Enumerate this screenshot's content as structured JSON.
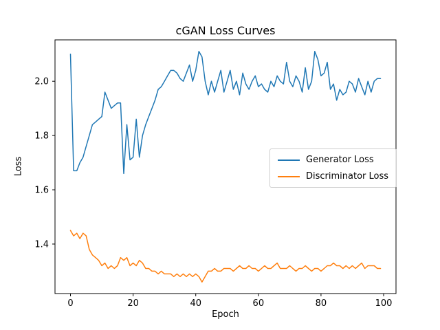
{
  "figure": {
    "background": "#ffffff"
  },
  "chart_data": {
    "type": "line",
    "title": "cGAN Loss Curves",
    "xlabel": "Epoch",
    "ylabel": "Loss",
    "grid": false,
    "legend_position": "center right",
    "xlim": [
      -4.95,
      103.95
    ],
    "ylim": [
      1.2175,
      2.1525
    ],
    "xticks": [
      0,
      20,
      40,
      60,
      80,
      100
    ],
    "xtick_labels": [
      "0",
      "20",
      "40",
      "60",
      "80",
      "100"
    ],
    "yticks": [
      1.4,
      1.6,
      1.8,
      2.0
    ],
    "ytick_labels": [
      "1.4",
      "1.6",
      "1.8",
      "2.0"
    ],
    "x": [
      0,
      1,
      2,
      3,
      4,
      5,
      6,
      7,
      8,
      9,
      10,
      11,
      12,
      13,
      14,
      15,
      16,
      17,
      18,
      19,
      20,
      21,
      22,
      23,
      24,
      25,
      26,
      27,
      28,
      29,
      30,
      31,
      32,
      33,
      34,
      35,
      36,
      37,
      38,
      39,
      40,
      41,
      42,
      43,
      44,
      45,
      46,
      47,
      48,
      49,
      50,
      51,
      52,
      53,
      54,
      55,
      56,
      57,
      58,
      59,
      60,
      61,
      62,
      63,
      64,
      65,
      66,
      67,
      68,
      69,
      70,
      71,
      72,
      73,
      74,
      75,
      76,
      77,
      78,
      79,
      80,
      81,
      82,
      83,
      84,
      85,
      86,
      87,
      88,
      89,
      90,
      91,
      92,
      93,
      94,
      95,
      96,
      97,
      98,
      99
    ],
    "series": [
      {
        "name": "Generator Loss",
        "color": "#1f77b4",
        "values": [
          2.1,
          1.67,
          1.67,
          1.7,
          1.72,
          1.76,
          1.8,
          1.84,
          1.85,
          1.86,
          1.87,
          1.96,
          1.93,
          1.9,
          1.91,
          1.92,
          1.92,
          1.66,
          1.84,
          1.71,
          1.72,
          1.86,
          1.72,
          1.8,
          1.84,
          1.87,
          1.9,
          1.93,
          1.97,
          1.98,
          2.0,
          2.02,
          2.04,
          2.04,
          2.03,
          2.01,
          2.0,
          2.03,
          2.06,
          2.0,
          2.04,
          2.11,
          2.09,
          2.0,
          1.95,
          2.0,
          1.96,
          2.0,
          2.04,
          1.96,
          2.0,
          2.04,
          1.97,
          2.0,
          1.95,
          2.03,
          1.99,
          1.97,
          2.0,
          2.02,
          1.98,
          1.99,
          1.97,
          1.96,
          2.0,
          1.98,
          2.02,
          2.0,
          1.99,
          2.07,
          2.0,
          1.98,
          2.02,
          2.0,
          1.96,
          2.05,
          1.97,
          2.0,
          2.11,
          2.08,
          2.02,
          2.03,
          2.07,
          1.97,
          1.99,
          1.93,
          1.97,
          1.95,
          1.96,
          2.0,
          1.99,
          1.96,
          2.01,
          1.98,
          1.95,
          2.0,
          1.96,
          2.0,
          2.01,
          2.01
        ]
      },
      {
        "name": "Discriminator Loss",
        "color": "#ff7f0e",
        "values": [
          1.45,
          1.43,
          1.44,
          1.42,
          1.44,
          1.43,
          1.38,
          1.36,
          1.35,
          1.34,
          1.32,
          1.33,
          1.31,
          1.32,
          1.31,
          1.32,
          1.35,
          1.34,
          1.35,
          1.32,
          1.33,
          1.32,
          1.34,
          1.33,
          1.31,
          1.31,
          1.3,
          1.3,
          1.29,
          1.3,
          1.29,
          1.29,
          1.29,
          1.28,
          1.29,
          1.28,
          1.29,
          1.28,
          1.29,
          1.28,
          1.29,
          1.28,
          1.26,
          1.28,
          1.3,
          1.3,
          1.31,
          1.3,
          1.3,
          1.31,
          1.31,
          1.31,
          1.3,
          1.31,
          1.32,
          1.31,
          1.31,
          1.32,
          1.31,
          1.31,
          1.3,
          1.31,
          1.32,
          1.31,
          1.31,
          1.32,
          1.33,
          1.31,
          1.31,
          1.31,
          1.32,
          1.31,
          1.3,
          1.31,
          1.31,
          1.32,
          1.31,
          1.3,
          1.31,
          1.31,
          1.3,
          1.31,
          1.32,
          1.32,
          1.33,
          1.32,
          1.32,
          1.31,
          1.32,
          1.31,
          1.32,
          1.31,
          1.32,
          1.33,
          1.31,
          1.32,
          1.32,
          1.32,
          1.31,
          1.31
        ]
      }
    ]
  }
}
